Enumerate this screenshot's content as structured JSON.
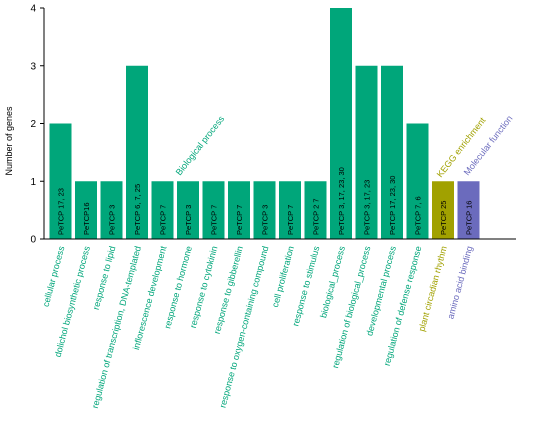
{
  "chart_data": {
    "type": "bar",
    "ylabel": "Number of genes",
    "xlabel": "",
    "ylim": [
      0,
      4
    ],
    "yticks": [
      "0",
      "1",
      "2",
      "3",
      "4"
    ],
    "grid": false,
    "colors": {
      "biological": "#00a67a",
      "kegg": "#a1a100",
      "molecular": "#6b6bbd",
      "axis": "#000000"
    },
    "categories": [
      "cellular process",
      "dolichol biosynthetic process",
      "response to lipid",
      "regulation of transcription, DNA-templated",
      "inflorescence development",
      "response to hormone",
      "response to cytokinin",
      "response to gibberellin",
      "response to oxygen-containing compound",
      "cell proliferation",
      "response to stimulus",
      "biological_process",
      "regulation of biological_process",
      "developmental process",
      "regulation of defense response",
      "plant circadian rhythm",
      "amino acid binding"
    ],
    "values": [
      2,
      1,
      1,
      3,
      1,
      1,
      1,
      1,
      1,
      1,
      1,
      4,
      3,
      3,
      2,
      1,
      1
    ],
    "bar_labels": [
      "PeTCP 17, 23",
      "PeTCP16",
      "PeTCP 3",
      "PeTCP 6, 7, 25",
      "PeTCP 7",
      "PeTCP 3",
      "PeTCP 7",
      "PeTCP 7",
      "PeTCP 3",
      "PeTCP 7",
      "PeTCP 2 7",
      "PeTCP 3, 17, 23, 30",
      "PeTCP 3, 17, 23",
      "PeTCP 17, 23, 30",
      "PeTCP 7, 6",
      "PeTCP 25",
      "PeTCP 16"
    ],
    "groups": [
      "biological",
      "biological",
      "biological",
      "biological",
      "biological",
      "biological",
      "biological",
      "biological",
      "biological",
      "biological",
      "biological",
      "biological",
      "biological",
      "biological",
      "biological",
      "kegg",
      "molecular"
    ],
    "annotations": [
      {
        "text": "Biological process",
        "group": "biological"
      },
      {
        "text": "KEGG enrichment",
        "group": "kegg"
      },
      {
        "text": "Molecular function",
        "group": "molecular"
      }
    ]
  }
}
